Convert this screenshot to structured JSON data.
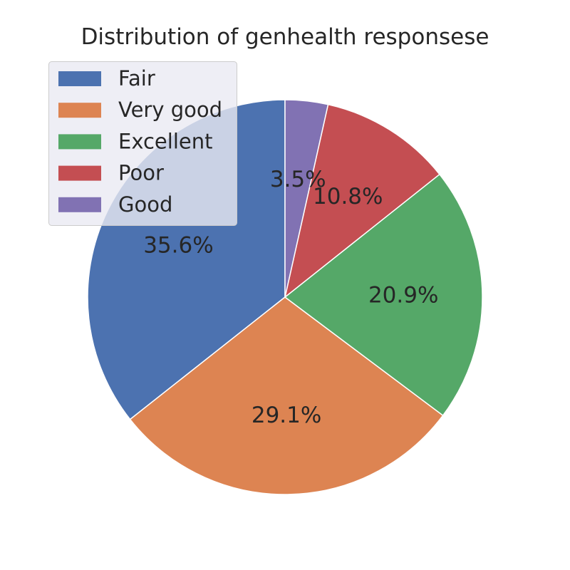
{
  "chart_data": {
    "type": "pie",
    "title": "Distribution of genhealth responsese",
    "labels": [
      "Fair",
      "Very good",
      "Excellent",
      "Poor",
      "Good"
    ],
    "values": [
      35.6,
      29.1,
      20.9,
      10.8,
      3.5
    ],
    "value_labels": [
      "35.6%",
      "29.1%",
      "20.9%",
      "10.8%",
      "3.5%"
    ],
    "colors": [
      "#4c72b0",
      "#dd8452",
      "#55a868",
      "#c44e52",
      "#8172b3"
    ],
    "start_angle_deg": 90,
    "direction": "counterclockwise",
    "legend_location": "upper-left"
  }
}
